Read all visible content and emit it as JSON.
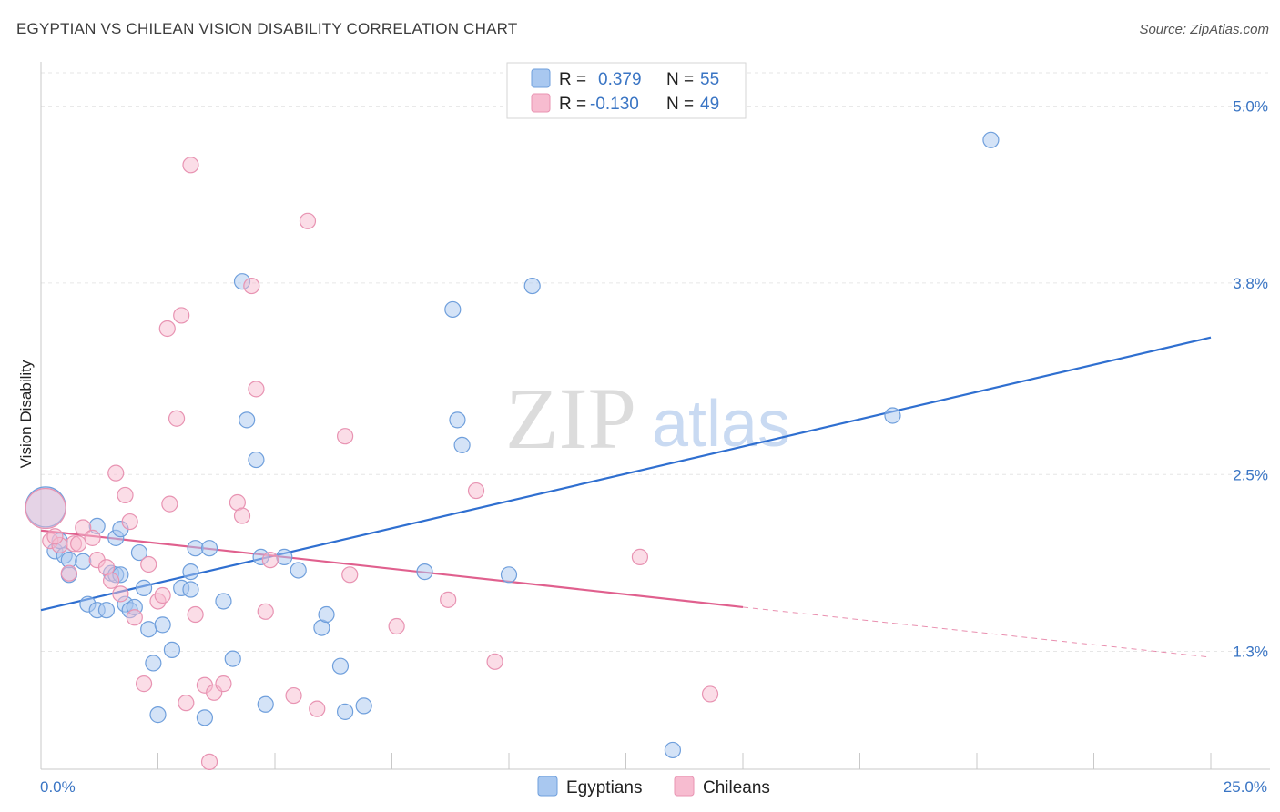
{
  "header": {
    "title": "EGYPTIAN VS CHILEAN VISION DISABILITY CORRELATION CHART",
    "source": "Source: ZipAtlas.com"
  },
  "watermark": {
    "zip": "ZIP",
    "atlas": "atlas"
  },
  "colors": {
    "egyptians_fill": "#a9c8f0",
    "egyptians_stroke": "#6f9fdc",
    "egyptians_line": "#2f6fd0",
    "chileans_fill": "#f7bcd0",
    "chileans_stroke": "#e893b2",
    "chileans_line": "#e0608e",
    "tick_text": "#3a75c4"
  },
  "legend": {
    "rows": [
      {
        "r_label": "R =",
        "r_value": "0.379",
        "n_label": "N =",
        "n_value": "55"
      },
      {
        "r_label": "R =",
        "r_value": "-0.130",
        "n_label": "N =",
        "n_value": "49"
      }
    ]
  },
  "bottom_legend": [
    "Egyptians",
    "Chileans"
  ],
  "chart_data": {
    "type": "scatter",
    "xlabel": "",
    "ylabel": "Vision Disability",
    "xlim": [
      0,
      25
    ],
    "ylim": [
      0.5,
      5.3
    ],
    "x_tick_labels": [
      "0.0%",
      "25.0%"
    ],
    "y_ticks": [
      1.3,
      2.5,
      3.8,
      5.0
    ],
    "y_tick_labels": [
      "1.3%",
      "2.5%",
      "3.8%",
      "5.0%"
    ],
    "grid": "horizontal dashed",
    "legend_position": "top-center",
    "series": [
      {
        "name": "Egyptians",
        "r": 0.379,
        "n": 55,
        "trend": {
          "x": [
            0,
            25
          ],
          "y": [
            1.58,
            3.43
          ]
        },
        "points": [
          [
            0.1,
            2.28
          ],
          [
            0.3,
            1.98
          ],
          [
            0.4,
            2.05
          ],
          [
            0.5,
            1.95
          ],
          [
            0.6,
            1.82
          ],
          [
            0.6,
            1.92
          ],
          [
            0.9,
            1.91
          ],
          [
            1.0,
            1.62
          ],
          [
            1.2,
            1.58
          ],
          [
            1.4,
            1.58
          ],
          [
            1.6,
            2.07
          ],
          [
            1.7,
            2.13
          ],
          [
            1.5,
            1.83
          ],
          [
            1.6,
            1.82
          ],
          [
            1.7,
            1.82
          ],
          [
            1.8,
            1.62
          ],
          [
            1.9,
            1.58
          ],
          [
            2.1,
            1.97
          ],
          [
            2.2,
            1.73
          ],
          [
            2.3,
            1.45
          ],
          [
            2.4,
            1.22
          ],
          [
            2.5,
            0.87
          ],
          [
            2.6,
            1.48
          ],
          [
            2.8,
            1.31
          ],
          [
            3.0,
            1.73
          ],
          [
            3.2,
            1.84
          ],
          [
            3.2,
            1.72
          ],
          [
            3.3,
            2.0
          ],
          [
            3.5,
            0.85
          ],
          [
            3.6,
            2.0
          ],
          [
            3.9,
            1.64
          ],
          [
            4.1,
            1.25
          ],
          [
            4.3,
            3.81
          ],
          [
            4.4,
            2.87
          ],
          [
            4.6,
            2.6
          ],
          [
            4.7,
            1.94
          ],
          [
            4.8,
            0.94
          ],
          [
            5.2,
            1.94
          ],
          [
            5.5,
            1.85
          ],
          [
            6.0,
            1.46
          ],
          [
            6.1,
            1.55
          ],
          [
            6.4,
            1.2
          ],
          [
            6.5,
            0.89
          ],
          [
            6.9,
            0.93
          ],
          [
            8.2,
            1.84
          ],
          [
            8.8,
            3.62
          ],
          [
            8.9,
            2.87
          ],
          [
            9.0,
            2.7
          ],
          [
            10.0,
            1.82
          ],
          [
            10.5,
            3.78
          ],
          [
            13.5,
            0.63
          ],
          [
            18.2,
            2.9
          ],
          [
            20.3,
            4.77
          ],
          [
            1.2,
            2.15
          ],
          [
            2.0,
            1.6
          ]
        ]
      },
      {
        "name": "Chileans",
        "r": -0.13,
        "n": 49,
        "trend": {
          "x": [
            0,
            15
          ],
          "y": [
            2.12,
            1.6
          ]
        },
        "trend_dashed": {
          "x": [
            15,
            25
          ],
          "y": [
            1.6,
            1.26
          ]
        },
        "points": [
          [
            0.1,
            2.27
          ],
          [
            0.2,
            2.05
          ],
          [
            0.4,
            2.02
          ],
          [
            0.6,
            1.83
          ],
          [
            0.7,
            2.03
          ],
          [
            0.8,
            2.03
          ],
          [
            0.9,
            2.14
          ],
          [
            1.1,
            2.07
          ],
          [
            1.2,
            1.92
          ],
          [
            1.4,
            1.87
          ],
          [
            1.5,
            1.78
          ],
          [
            1.6,
            2.51
          ],
          [
            1.7,
            1.69
          ],
          [
            1.8,
            2.36
          ],
          [
            1.9,
            2.18
          ],
          [
            2.0,
            1.53
          ],
          [
            2.2,
            1.08
          ],
          [
            2.3,
            1.89
          ],
          [
            2.5,
            1.64
          ],
          [
            2.6,
            1.68
          ],
          [
            2.7,
            3.49
          ],
          [
            2.75,
            2.3
          ],
          [
            2.9,
            2.88
          ],
          [
            3.0,
            3.58
          ],
          [
            3.1,
            0.95
          ],
          [
            3.2,
            4.6
          ],
          [
            3.3,
            1.55
          ],
          [
            3.5,
            1.07
          ],
          [
            3.6,
            0.55
          ],
          [
            3.7,
            1.02
          ],
          [
            3.9,
            1.08
          ],
          [
            4.2,
            2.31
          ],
          [
            4.3,
            2.22
          ],
          [
            4.5,
            3.78
          ],
          [
            4.6,
            3.08
          ],
          [
            4.8,
            1.57
          ],
          [
            4.9,
            1.92
          ],
          [
            5.4,
            1.0
          ],
          [
            5.7,
            4.22
          ],
          [
            5.9,
            0.91
          ],
          [
            6.5,
            2.76
          ],
          [
            6.6,
            1.82
          ],
          [
            7.6,
            1.47
          ],
          [
            8.7,
            1.65
          ],
          [
            9.3,
            2.39
          ],
          [
            9.7,
            1.23
          ],
          [
            12.8,
            1.94
          ],
          [
            14.3,
            1.01
          ],
          [
            0.3,
            2.08
          ]
        ]
      }
    ]
  }
}
